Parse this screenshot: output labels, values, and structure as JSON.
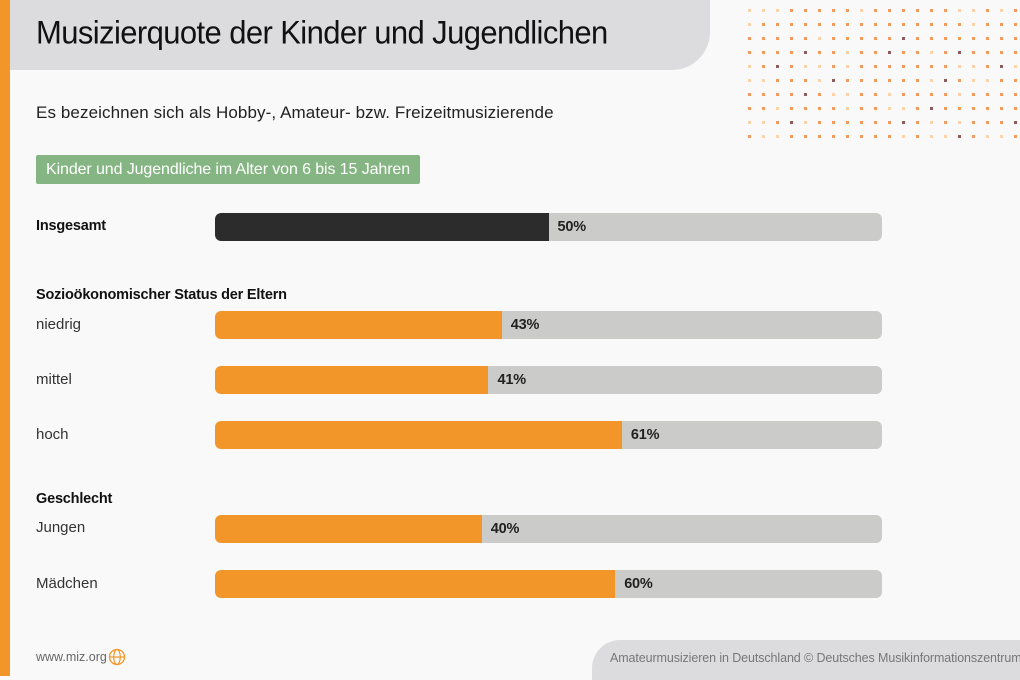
{
  "header": {
    "title": "Musizierquote der Kinder und Jugendlichen",
    "subtitle": "Es bezeichnen sich als Hobby-, Amateur- bzw. Freizeitmusizierende",
    "badge": "Kinder und Jugendliche im Alter von 6 bis 15 Jahren"
  },
  "colors": {
    "accent": "#f3962a",
    "total_bar": "#2c2c2c",
    "group_bar": "#f3962a",
    "track": "#cbcbc9",
    "badge": "#85b582",
    "header_bg": "#dcdcde",
    "dot_light": "#fcd2a6",
    "dot_mid": "#f39a5c",
    "dot_dark": "#8d5c5c"
  },
  "decoration": {
    "dot_grid": {
      "columns": 20,
      "rows": 10,
      "dark_dots": [
        [
          2,
          11
        ],
        [
          3,
          4
        ],
        [
          3,
          10
        ],
        [
          3,
          15
        ],
        [
          4,
          2
        ],
        [
          4,
          18
        ],
        [
          5,
          6
        ],
        [
          5,
          14
        ],
        [
          6,
          4
        ],
        [
          7,
          13
        ],
        [
          8,
          3
        ],
        [
          8,
          11
        ],
        [
          8,
          19
        ],
        [
          9,
          15
        ]
      ],
      "light_dots": [
        [
          0,
          0
        ],
        [
          0,
          1
        ],
        [
          0,
          2
        ],
        [
          0,
          8
        ],
        [
          0,
          15
        ],
        [
          0,
          16
        ],
        [
          0,
          18
        ],
        [
          1,
          0
        ],
        [
          1,
          16
        ],
        [
          2,
          5
        ],
        [
          3,
          7
        ],
        [
          3,
          13
        ],
        [
          4,
          0
        ],
        [
          4,
          4
        ],
        [
          4,
          5
        ],
        [
          4,
          7
        ],
        [
          4,
          15
        ],
        [
          4,
          16
        ],
        [
          4,
          19
        ],
        [
          5,
          0
        ],
        [
          5,
          1
        ],
        [
          5,
          5
        ],
        [
          5,
          13
        ],
        [
          5,
          16
        ],
        [
          5,
          17
        ],
        [
          6,
          6
        ],
        [
          6,
          7
        ],
        [
          6,
          10
        ],
        [
          6,
          15
        ],
        [
          7,
          2
        ],
        [
          7,
          7
        ],
        [
          7,
          10
        ],
        [
          7,
          11
        ],
        [
          8,
          0
        ],
        [
          8,
          1
        ],
        [
          8,
          4
        ],
        [
          8,
          13
        ],
        [
          8,
          15
        ],
        [
          9,
          1
        ],
        [
          9,
          2
        ],
        [
          9,
          11
        ],
        [
          9,
          13
        ],
        [
          9,
          14
        ],
        [
          9,
          17
        ],
        [
          9,
          18
        ]
      ]
    }
  },
  "footer": {
    "url": "www.miz.org",
    "globe_icon": "globe-icon",
    "credit": "Amateurmusizieren in Deutschland  © Deutsches Musikinformationszentrum"
  },
  "chart_data": {
    "type": "bar",
    "orientation": "horizontal",
    "title": "Musizierquote der Kinder und Jugendlichen",
    "subtitle": "Es bezeichnen sich als Hobby-, Amateur- bzw. Freizeitmusizierende",
    "population": "Kinder und Jugendliche im Alter von 6 bis 15 Jahren",
    "xlim": [
      0,
      100
    ],
    "unit": "%",
    "grid": false,
    "legend": "none",
    "groups": [
      {
        "heading": "",
        "items": [
          {
            "label": "Insgesamt",
            "value": 50,
            "value_label": "50%",
            "style": "total"
          }
        ]
      },
      {
        "heading": "Sozioökonomischer Status der Eltern",
        "items": [
          {
            "label": "niedrig",
            "value": 43,
            "value_label": "43%",
            "style": "group"
          },
          {
            "label": "mittel",
            "value": 41,
            "value_label": "41%",
            "style": "group"
          },
          {
            "label": "hoch",
            "value": 61,
            "value_label": "61%",
            "style": "group"
          }
        ]
      },
      {
        "heading": "Geschlecht",
        "items": [
          {
            "label": "Jungen",
            "value": 40,
            "value_label": "40%",
            "style": "group"
          },
          {
            "label": "Mädchen",
            "value": 60,
            "value_label": "60%",
            "style": "group"
          }
        ]
      }
    ]
  }
}
